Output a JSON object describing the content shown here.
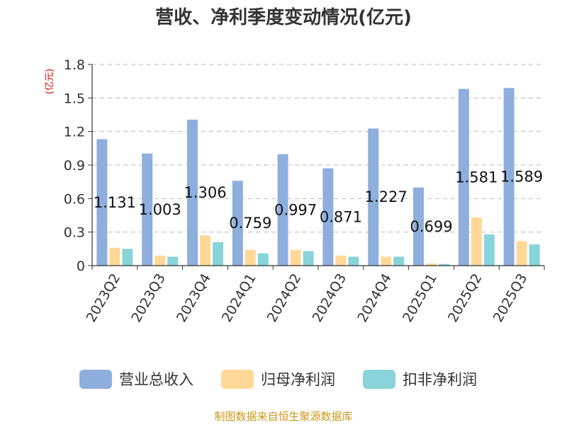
{
  "chart_data": {
    "type": "bar",
    "title": "营收、净利季度变动情况(亿元)",
    "ylabel": "(亿元)",
    "xlabel": "",
    "ylim": [
      0,
      1.8
    ],
    "yticks": [
      "0",
      "0.3",
      "0.6",
      "0.9",
      "1.2",
      "1.5",
      "1.8"
    ],
    "ytick_values": [
      0,
      0.3,
      0.6,
      0.9,
      1.2,
      1.5,
      1.8
    ],
    "grid": true,
    "legend": "bottom",
    "categories": [
      "2023Q2",
      "2023Q3",
      "2023Q4",
      "2024Q1",
      "2024Q2",
      "2024Q3",
      "2024Q4",
      "2025Q1",
      "2025Q2",
      "2025Q3"
    ],
    "series": [
      {
        "name": "营业总收入",
        "color": "#8eaedd",
        "values": [
          1.131,
          1.003,
          1.306,
          0.759,
          0.997,
          0.871,
          1.227,
          0.699,
          1.581,
          1.589
        ]
      },
      {
        "name": "归母净利润",
        "color": "#ffd898",
        "values": [
          0.16,
          0.09,
          0.27,
          0.14,
          0.14,
          0.09,
          0.08,
          0.02,
          0.43,
          0.22
        ]
      },
      {
        "name": "扣非净利润",
        "color": "#88d4d8",
        "values": [
          0.15,
          0.08,
          0.21,
          0.11,
          0.13,
          0.08,
          0.08,
          0.015,
          0.28,
          0.19
        ]
      }
    ],
    "data_labels": [
      "1.131",
      "1.003",
      "1.306",
      "0.759",
      "0.997",
      "0.871",
      "1.227",
      "0.699",
      "1.581",
      "1.589"
    ]
  },
  "source": "制图数据来自恒生聚源数据库",
  "colors": {
    "axis": "#333333",
    "grid": "#bbbbbb",
    "ylabel": "#e00000",
    "source": "#c9981a"
  }
}
